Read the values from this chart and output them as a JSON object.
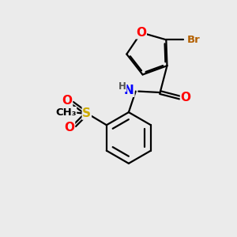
{
  "bg_color": "#ebebeb",
  "bond_color": "#000000",
  "bond_width": 1.6,
  "atom_colors": {
    "O": "#ff0000",
    "N": "#0000ff",
    "S": "#ccaa00",
    "Br": "#b36000",
    "C": "#000000",
    "H": "#555555"
  },
  "font_size": 11,
  "font_size_small": 9.5
}
